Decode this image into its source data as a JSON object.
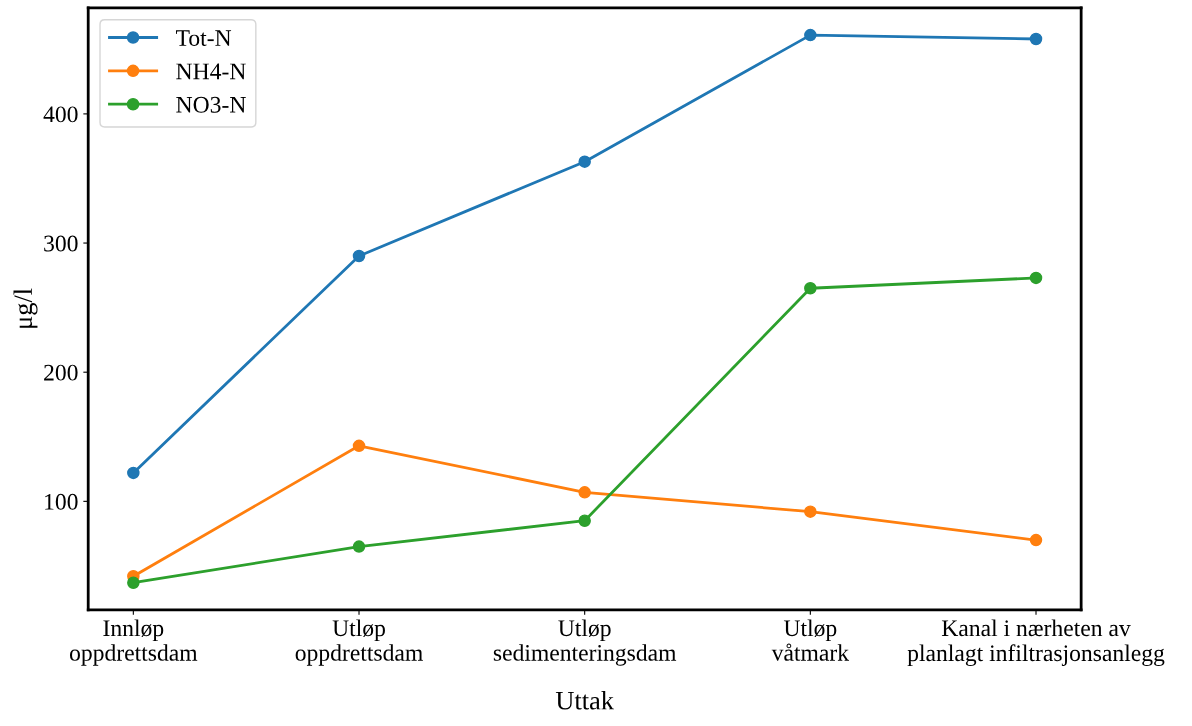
{
  "chart_data": {
    "type": "line",
    "xlabel": "Uttak",
    "ylabel": "μg/l",
    "categories": [
      "Innløp\noppdrettsdam",
      "Utløp\noppdrettsdam",
      "Utløp\nsedimenteringsdam",
      "Utløp\nvåtmark",
      "Kanal i nærheten av\nplanlagt infiltrasjonsanlegg"
    ],
    "series": [
      {
        "name": "Tot-N",
        "color": "#1f77b4",
        "values": [
          122,
          290,
          363,
          461,
          458
        ]
      },
      {
        "name": "NH4-N",
        "color": "#ff7f0e",
        "values": [
          42,
          143,
          107,
          92,
          70
        ]
      },
      {
        "name": "NO3-N",
        "color": "#2ca02c",
        "values": [
          37,
          65,
          85,
          265,
          273
        ]
      }
    ],
    "ylim": [
      16,
      482
    ],
    "yticks": [
      100,
      200,
      300,
      400
    ],
    "legend": "top left",
    "marker": "circle",
    "line_style": "solid",
    "grid": false
  }
}
